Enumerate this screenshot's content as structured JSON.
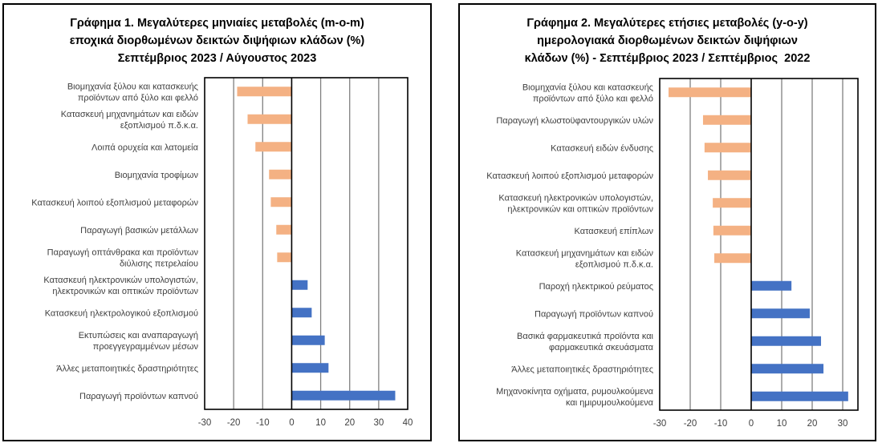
{
  "colors": {
    "negative": "#F4B183",
    "positive": "#4472C4",
    "grid": "#808080"
  },
  "chart_data": [
    {
      "type": "bar",
      "orientation": "horizontal",
      "title_lines": [
        "Γράφημα 1. Μεγαλύτερες μηνιαίες μεταβολές (m-o-m)",
        "εποχικά διορθωμένων δεικτών διψήφιων κλάδων (%)",
        "Σεπτέμβριος 2023 / Αύγουστος 2023"
      ],
      "categories": [
        "Βιομηχανία ξύλου και κατασκευής\nπροϊόντων από ξύλο και φελλό",
        "Κατασκευή μηχανημάτων και ειδών\nεξοπλισμού π.δ.κ.α.",
        "Λοιπά ορυχεία και λατομεία",
        "Βιομηχανία τροφίμων",
        "Κατασκευή λοιπού εξοπλισμού μεταφορών",
        "Παραγωγή βασικών μετάλλων",
        "Παραγωγή οπτάνθρακα και προϊόντων\nδιύλισης πετρελαίου",
        "Κατασκευή ηλεκτρονικών υπολογιστών,\nηλεκτρονικών και οπτικών προϊόντων",
        "Κατασκευή ηλεκτρολογικού εξοπλισμού",
        "Εκτυπώσεις και αναπαραγωγή\nπροεγγεγραμμένων μέσων",
        "Άλλες μεταποιητικές δραστηριότητες",
        "Παραγωγή προϊόντων καπνού"
      ],
      "values": [
        -18.8,
        -15.2,
        -12.5,
        -7.8,
        -7.2,
        -5.3,
        -5.0,
        5.5,
        6.9,
        11.4,
        12.7,
        35.7
      ],
      "xlim": [
        -30,
        40
      ],
      "xticks": [
        "-30",
        "-20",
        "-10",
        "0",
        "10",
        "20",
        "30",
        "40"
      ],
      "grid": true
    },
    {
      "type": "bar",
      "orientation": "horizontal",
      "title_lines": [
        "Γράφημα 2. Μεγαλύτερες ετήσιες μεταβολές (y-o-y)",
        "ημερολογιακά διορθωμένων δεικτών διψήφιων",
        "κλάδων (%) - Σεπτέμβριος 2023 / Σεπτέμβριος  2022"
      ],
      "categories": [
        "Βιομηχανία ξύλου και κατασκευής\nπροϊόντων από ξύλο και φελλό",
        "Παραγωγή κλωστοϋφαντουργικών υλών",
        "Κατασκευή ειδών ένδυσης",
        "Κατασκευή λοιπού εξοπλισμού μεταφορών",
        "Κατασκευή ηλεκτρονικών υπολογιστών,\nηλεκτρονικών και οπτικών προϊόντων",
        "Κατασκευή επίπλων",
        "Κατασκευή μηχανημάτων και ειδών\nεξοπλισμού π.δ.κ.α.",
        "Παροχή ηλεκτρικού ρεύματος",
        "Παραγωγή προϊόντων καπνού",
        "Βασικά φαρμακευτικά προϊόντα και\nφαρμακευτικά σκευάσματα",
        "Άλλες μεταποιητικές δραστηριότητες",
        "Μηχανοκίνητα οχήματα, ρυμουλκούμενα\nκαι ημιρυμουλκούμενα"
      ],
      "values": [
        -27.1,
        -15.8,
        -15.3,
        -14.2,
        -12.6,
        -12.4,
        -12.1,
        13.2,
        19.2,
        22.9,
        23.7,
        31.8
      ],
      "xlim": [
        -30,
        35
      ],
      "xticks": [
        "-30",
        "-20",
        "-10",
        "0",
        "10",
        "20",
        "30"
      ],
      "grid": true
    }
  ]
}
